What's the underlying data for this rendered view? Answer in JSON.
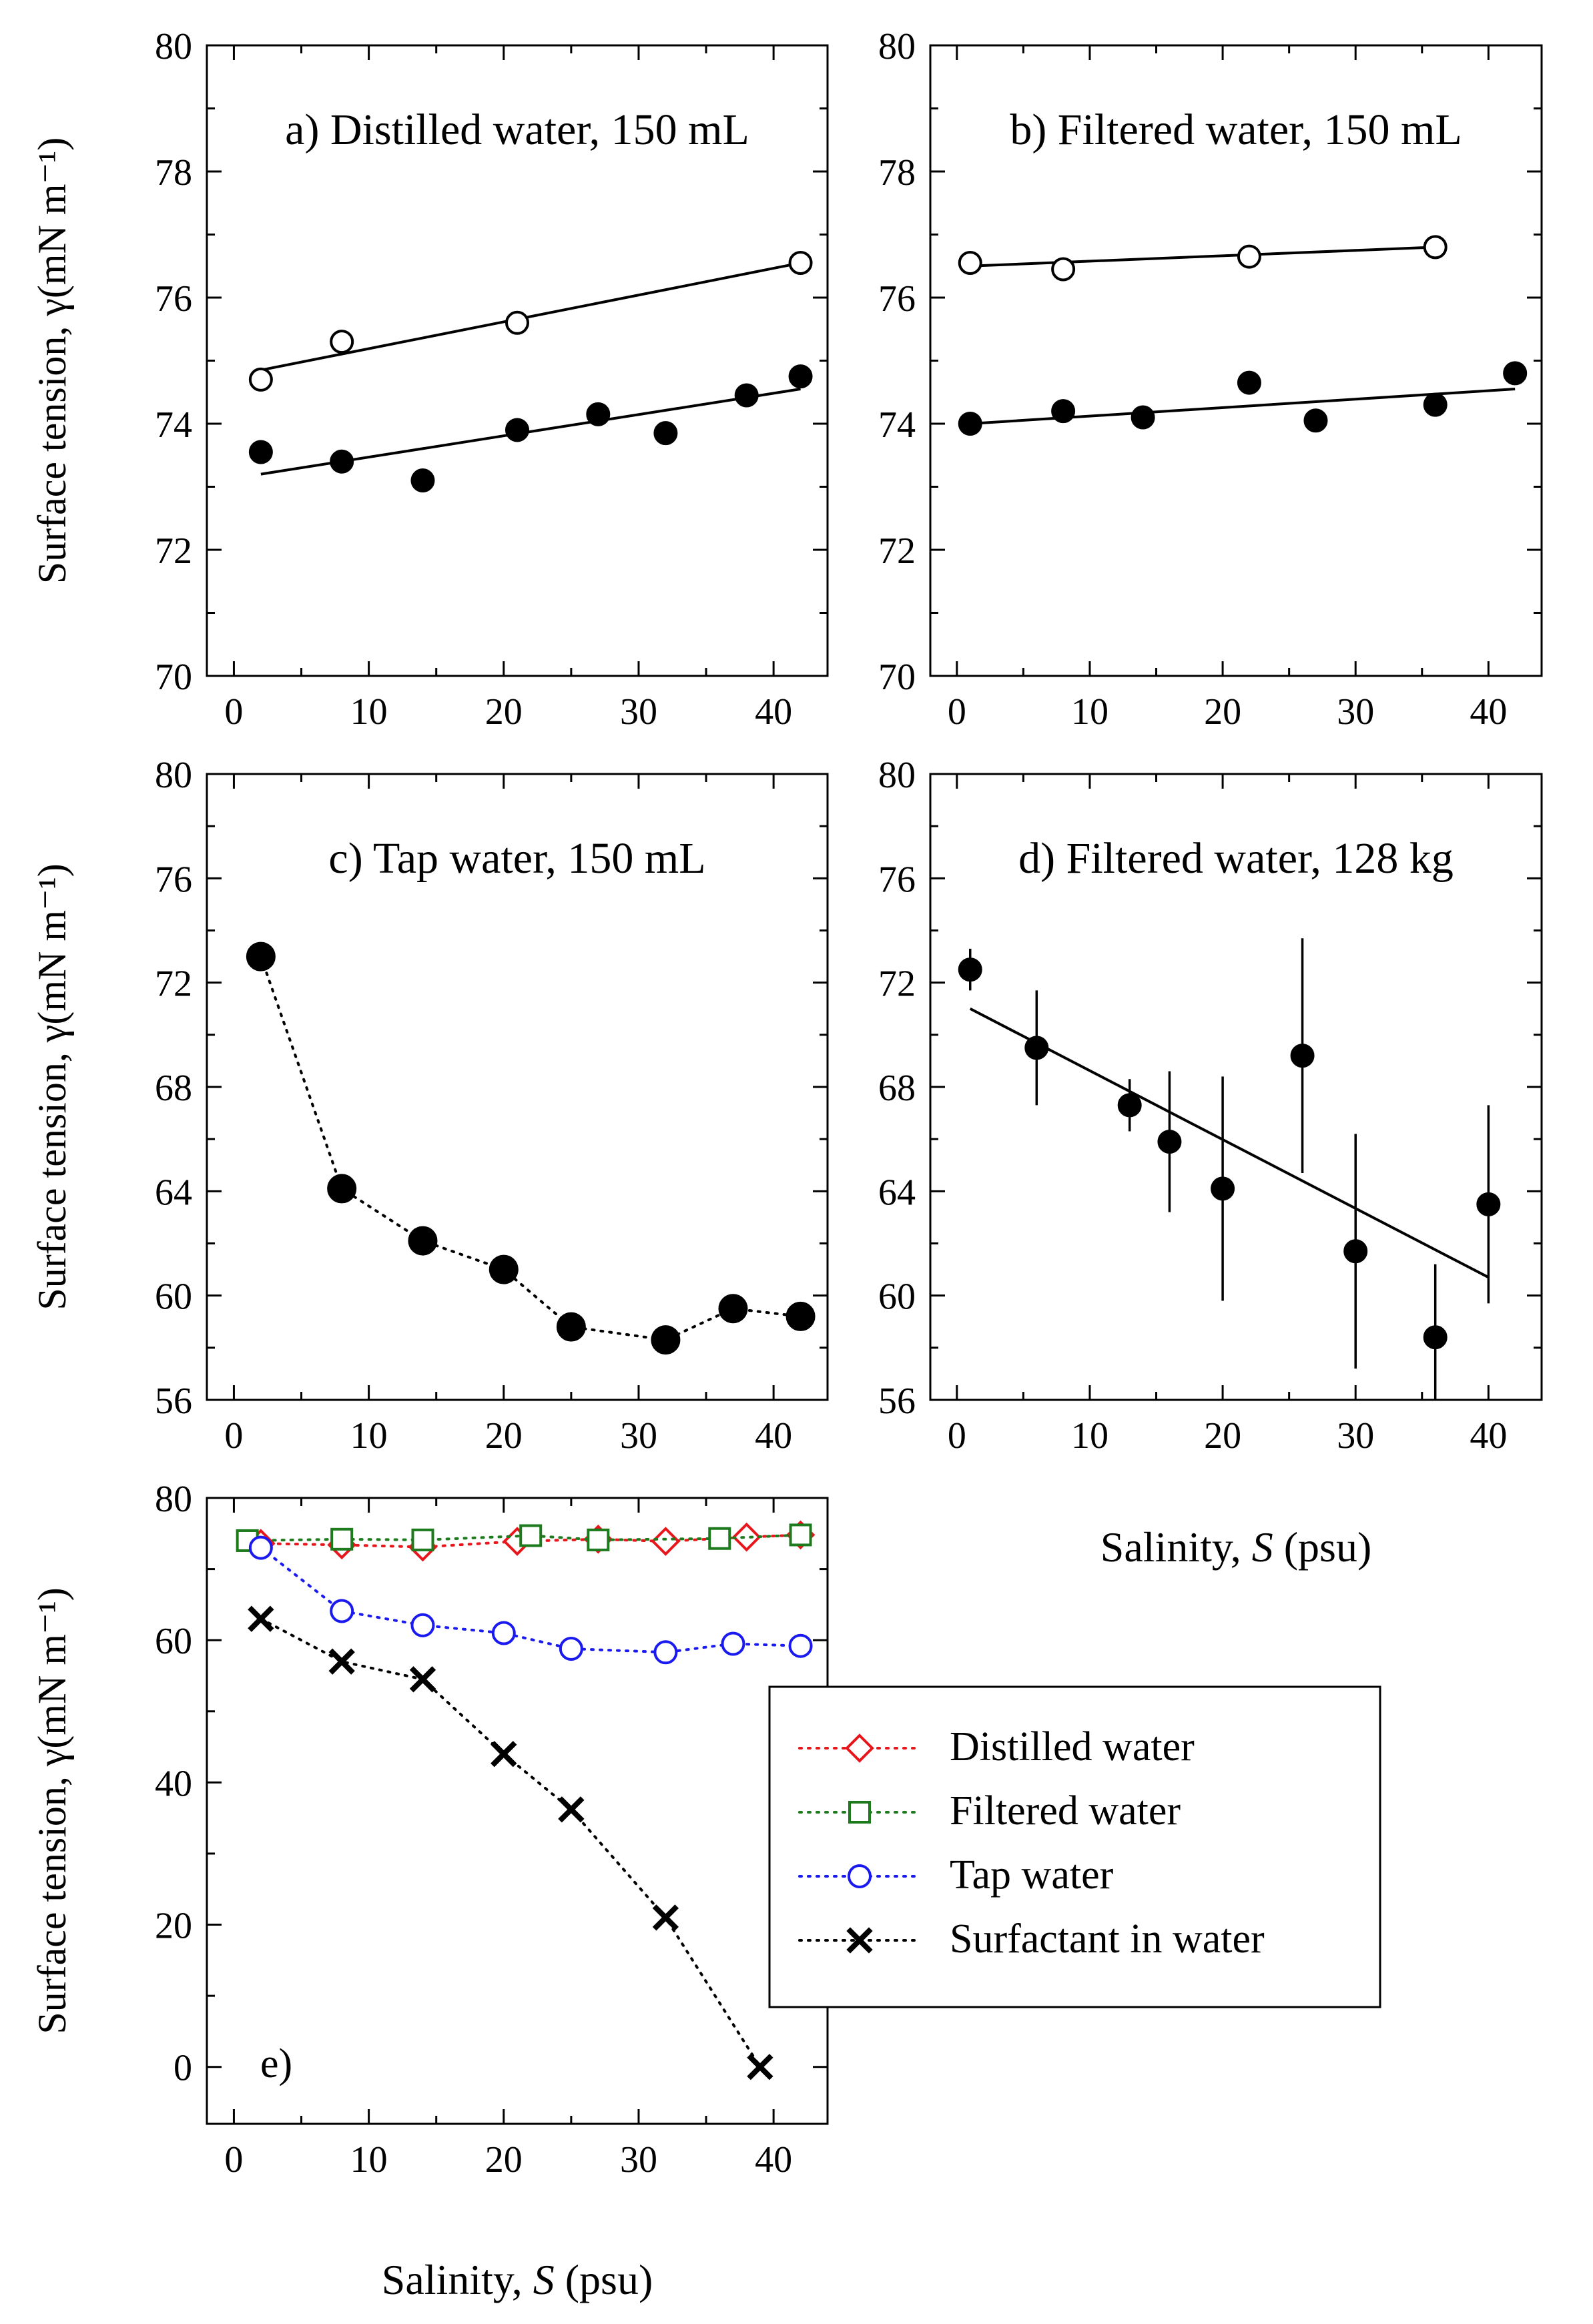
{
  "figure": {
    "xlabel_text": "Salinity, ",
    "xlabel_var": "S",
    "xlabel_unit": " (psu)"
  },
  "chart_data": [
    {
      "id": "a",
      "type": "scatter",
      "title": "a) Distilled water, 150 mL",
      "ylabel": "Surface tension, γ(mN m⁻¹)",
      "xlim": [
        -2,
        44
      ],
      "ylim": [
        70,
        80
      ],
      "xticks": [
        0,
        10,
        20,
        30,
        40
      ],
      "yticks": [
        70,
        72,
        74,
        76,
        78,
        80
      ],
      "xticklabels_visible": true,
      "xlabel": "",
      "series": [
        {
          "name": "open",
          "marker": "open-circle",
          "color": "#000000",
          "x": [
            2,
            8,
            21,
            42
          ],
          "y": [
            74.7,
            75.3,
            75.6,
            76.55
          ],
          "fit": [
            [
              2,
              74.85
            ],
            [
              42,
              76.55
            ]
          ]
        },
        {
          "name": "filled",
          "marker": "filled-circle",
          "color": "#000000",
          "x": [
            2,
            8,
            14,
            21,
            27,
            32,
            38,
            42
          ],
          "y": [
            73.55,
            73.4,
            73.1,
            73.9,
            74.15,
            73.85,
            74.45,
            74.75
          ],
          "fit": [
            [
              2,
              73.2
            ],
            [
              42,
              74.55
            ]
          ]
        }
      ]
    },
    {
      "id": "b",
      "type": "scatter",
      "title": "b) Filtered water, 150 mL",
      "ylabel": "",
      "xlim": [
        -2,
        44
      ],
      "ylim": [
        70,
        80
      ],
      "xticks": [
        0,
        10,
        20,
        30,
        40
      ],
      "yticks": [
        70,
        72,
        74,
        76,
        78,
        80
      ],
      "xticklabels_visible": true,
      "xlabel": "",
      "series": [
        {
          "name": "open",
          "marker": "open-circle",
          "color": "#000000",
          "x": [
            1,
            8,
            22,
            36
          ],
          "y": [
            76.55,
            76.45,
            76.65,
            76.8
          ],
          "fit": [
            [
              1,
              76.5
            ],
            [
              36,
              76.8
            ]
          ]
        },
        {
          "name": "filled",
          "marker": "filled-circle",
          "color": "#000000",
          "x": [
            1,
            8,
            14,
            22,
            27,
            36,
            42
          ],
          "y": [
            74.0,
            74.2,
            74.1,
            74.65,
            74.05,
            74.3,
            74.8
          ],
          "fit": [
            [
              1,
              74.0
            ],
            [
              42,
              74.55
            ]
          ]
        }
      ]
    },
    {
      "id": "c",
      "type": "line",
      "title": "c) Tap water, 150 mL",
      "ylabel": "Surface tension, γ(mN m⁻¹)",
      "xlim": [
        -2,
        44
      ],
      "ylim": [
        56,
        80
      ],
      "xticks": [
        0,
        10,
        20,
        30,
        40
      ],
      "yticks": [
        56,
        60,
        64,
        68,
        72,
        76,
        80
      ],
      "xticklabels_visible": true,
      "xlabel": "",
      "series": [
        {
          "name": "Tap water",
          "marker": "filled-circle-large",
          "color": "#000000",
          "line": "dotted",
          "x": [
            2,
            8,
            14,
            20,
            25,
            32,
            37,
            42
          ],
          "y": [
            73.0,
            64.1,
            62.1,
            61.0,
            58.8,
            58.3,
            59.5,
            59.2
          ]
        }
      ]
    },
    {
      "id": "d",
      "type": "scatter",
      "title": "d) Filtered water, 128 kg",
      "ylabel": "",
      "xlim": [
        -2,
        44
      ],
      "ylim": [
        56,
        80
      ],
      "xticks": [
        0,
        10,
        20,
        30,
        40
      ],
      "yticks": [
        56,
        60,
        64,
        68,
        72,
        76,
        80
      ],
      "xticklabels_visible": true,
      "xlabel": "Salinity, S (psu)",
      "series": [
        {
          "name": "filled",
          "marker": "filled-circle",
          "color": "#000000",
          "x": [
            1,
            6,
            13,
            16,
            20,
            26,
            30,
            36,
            40
          ],
          "y": [
            72.5,
            69.5,
            67.3,
            65.9,
            64.1,
            69.2,
            61.7,
            58.4,
            63.5
          ],
          "yerr": [
            0.8,
            2.2,
            1.0,
            2.7,
            4.3,
            4.5,
            4.5,
            2.8,
            3.8
          ],
          "fit": [
            [
              1,
              71.0
            ],
            [
              40,
              60.7
            ]
          ]
        }
      ]
    },
    {
      "id": "e",
      "type": "line",
      "title": "e)",
      "ylabel": "Surface tension, γ(mN m⁻¹)",
      "xlim": [
        -2,
        44
      ],
      "ylim": [
        -8,
        80
      ],
      "xticks": [
        0,
        10,
        20,
        30,
        40
      ],
      "yticks": [
        0,
        20,
        40,
        60,
        80
      ],
      "xticklabels_visible": true,
      "xlabel": "Salinity, S (psu)",
      "legend_position": "center-right",
      "series": [
        {
          "name": "Distilled water",
          "marker": "open-diamond",
          "color": "#e8151b",
          "line": "dotted",
          "x": [
            2,
            8,
            14,
            21,
            27,
            32,
            38,
            42
          ],
          "y": [
            73.6,
            73.4,
            73.1,
            73.9,
            74.2,
            73.9,
            74.5,
            74.8
          ]
        },
        {
          "name": "Filtered water",
          "marker": "open-square",
          "color": "#1d7a1d",
          "line": "dotted",
          "x": [
            1,
            8,
            14,
            22,
            27,
            36,
            42
          ],
          "y": [
            74.0,
            74.2,
            74.1,
            74.7,
            74.1,
            74.3,
            74.8
          ]
        },
        {
          "name": "Tap water",
          "marker": "open-circle",
          "color": "#1a1af0",
          "line": "dotted",
          "x": [
            2,
            8,
            14,
            20,
            25,
            32,
            37,
            42
          ],
          "y": [
            73.0,
            64.1,
            62.1,
            61.0,
            58.8,
            58.3,
            59.5,
            59.2
          ]
        },
        {
          "name": "Surfactant in water",
          "marker": "x",
          "color": "#000000",
          "line": "dotted",
          "x": [
            2,
            8,
            14,
            20,
            25,
            32,
            39
          ],
          "y": [
            63.0,
            57.0,
            54.5,
            44.0,
            36.2,
            21.0,
            0.0
          ]
        }
      ]
    }
  ]
}
